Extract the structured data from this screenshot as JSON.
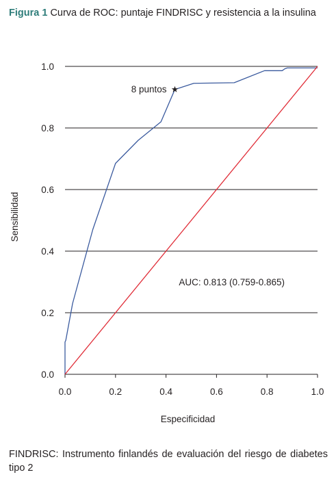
{
  "caption": {
    "label": "Figura 1",
    "text": "Curva de ROC: puntaje FINDRISC y resistencia a la insulina"
  },
  "footnote": "FINDRISC: Instrumento finlandés de evaluación del riesgo de diabetes tipo 2",
  "chart_data": {
    "type": "line",
    "title": "",
    "xlabel": "Especificidad",
    "ylabel": "Sensibilidad",
    "xlim": [
      0,
      1
    ],
    "ylim": [
      0,
      1
    ],
    "x_ticks": [
      "0.0",
      "0.2",
      "0.4",
      "0.6",
      "0.8",
      "1.0"
    ],
    "y_ticks": [
      "0.0",
      "0.2",
      "0.4",
      "0.6",
      "0.8",
      "1.0"
    ],
    "grid": "horizontal",
    "series": [
      {
        "color": "#3a5a9e",
        "x": [
          0.0,
          0.0,
          0.003,
          0.03,
          0.11,
          0.2,
          0.29,
          0.38,
          0.435,
          0.51,
          0.67,
          0.79,
          0.86,
          0.87,
          0.88,
          1.0
        ],
        "y": [
          0.0,
          0.105,
          0.11,
          0.23,
          0.47,
          0.685,
          0.76,
          0.82,
          0.925,
          0.945,
          0.947,
          0.986,
          0.986,
          0.992,
          0.995,
          0.995
        ]
      },
      {
        "color": "#e02b36",
        "x": [
          0.0,
          1.0
        ],
        "y": [
          0.0,
          1.0
        ]
      }
    ],
    "annotations": [
      {
        "text": "8 puntos",
        "x": 0.435,
        "y": 0.925,
        "marker": "star"
      },
      {
        "text": "AUC: 0.813 (0.759-0.865)",
        "x": 0.87,
        "y": 0.3
      }
    ]
  }
}
